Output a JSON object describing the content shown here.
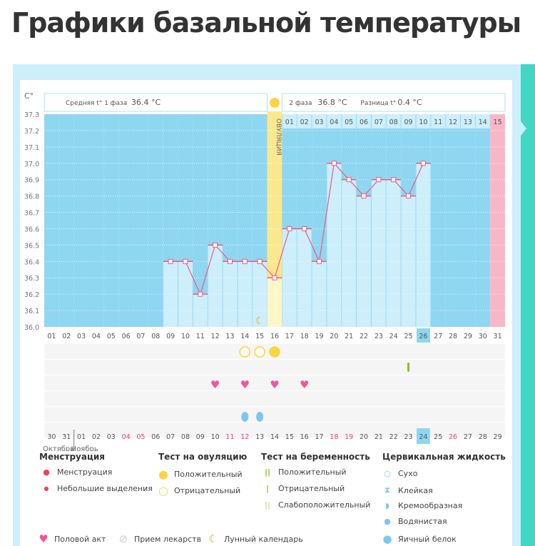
{
  "title": "Графики базальной температуры",
  "header": {
    "unit": "C°",
    "phase1_label": "Средняя t° 1 фаза",
    "phase1_value": "36.4 °C",
    "phase2_label": "2 фаза",
    "phase2_value": "36.8 °C",
    "diff_label": "Разница t°",
    "diff_value": "0.4 °C",
    "ovulation_label": "ОВУЛЯЦИЯ"
  },
  "colors": {
    "dark": "#8fd6f0",
    "light": "#cdeefb",
    "ovulation": "#fbe88e",
    "pink": "#f9b6c8",
    "line": "#ee5a84",
    "heart": "#f0569b",
    "yellow": "#fbd541",
    "drop": "#7ec6ee",
    "green": "#8cbf1f"
  },
  "chart_data": {
    "type": "line",
    "ylim": [
      36.0,
      37.3
    ],
    "yticks": [
      "37.3",
      "37.2",
      "37.1",
      "37.0",
      "36.9",
      "36.8",
      "36.7",
      "36.6",
      "36.5",
      "36.4",
      "36.3",
      "36.2",
      "36.1",
      "36.0"
    ],
    "cycle_days": [
      "01",
      "02",
      "03",
      "04",
      "05",
      "06",
      "07",
      "08",
      "09",
      "10",
      "11",
      "12",
      "13",
      "14",
      "15",
      "16",
      "17",
      "18",
      "19",
      "20",
      "21",
      "22",
      "23",
      "24",
      "25",
      "26",
      "27",
      "28",
      "29",
      "30",
      "31"
    ],
    "current_day": 26,
    "ovulation_day": 16,
    "period_day": 31,
    "temps": [
      null,
      null,
      null,
      null,
      null,
      null,
      null,
      null,
      36.4,
      36.4,
      36.2,
      36.5,
      36.4,
      36.4,
      36.4,
      36.3,
      36.6,
      36.6,
      36.4,
      37.0,
      36.9,
      36.8,
      36.9,
      36.9,
      36.8,
      37.0,
      null,
      null,
      null,
      null,
      null
    ],
    "luteal_days": [
      "01",
      "02",
      "03",
      "04",
      "05",
      "06",
      "07",
      "08",
      "09",
      "10",
      "11",
      "12",
      "13",
      "14",
      "15"
    ],
    "moon_day": 15,
    "dates": [
      "30",
      "31",
      "01",
      "02",
      "03",
      "04",
      "05",
      "06",
      "07",
      "08",
      "09",
      "10",
      "11",
      "12",
      "13",
      "14",
      "15",
      "16",
      "17",
      "18",
      "19",
      "20",
      "21",
      "22",
      "23",
      "24",
      "25",
      "26",
      "27",
      "28",
      "29"
    ],
    "red_dates": [
      5,
      6,
      12,
      13,
      19,
      20,
      27
    ],
    "months": [
      "Октябрь",
      "Ноябрь"
    ],
    "ovulation_tests": {
      "14": "negative",
      "15": "negative",
      "16": "positive"
    },
    "pregnancy_tests": {
      "25": "negative"
    },
    "intercourse": [
      12,
      14,
      16,
      18
    ],
    "cervical": [
      14,
      15
    ]
  },
  "legend": {
    "menstruation": {
      "title": "Менструация",
      "items": [
        "Менструация",
        "Небольшие выделения"
      ]
    },
    "ovulation_test": {
      "title": "Тест на овуляцию",
      "items": [
        "Положительный",
        "Отрицательный"
      ]
    },
    "pregnancy_test": {
      "title": "Тест на беременность",
      "items": [
        "Положительный",
        "Отрицательный",
        "Слабоположительный"
      ]
    },
    "cervical": {
      "title": "Цервикальная жидкость",
      "items": [
        "Сухо",
        "Клейкая",
        "Кремообразная",
        "Водянистая",
        "Яичный белок"
      ]
    },
    "other": [
      "Половой акт",
      "Прием лекарств",
      "Лунный календарь"
    ]
  }
}
